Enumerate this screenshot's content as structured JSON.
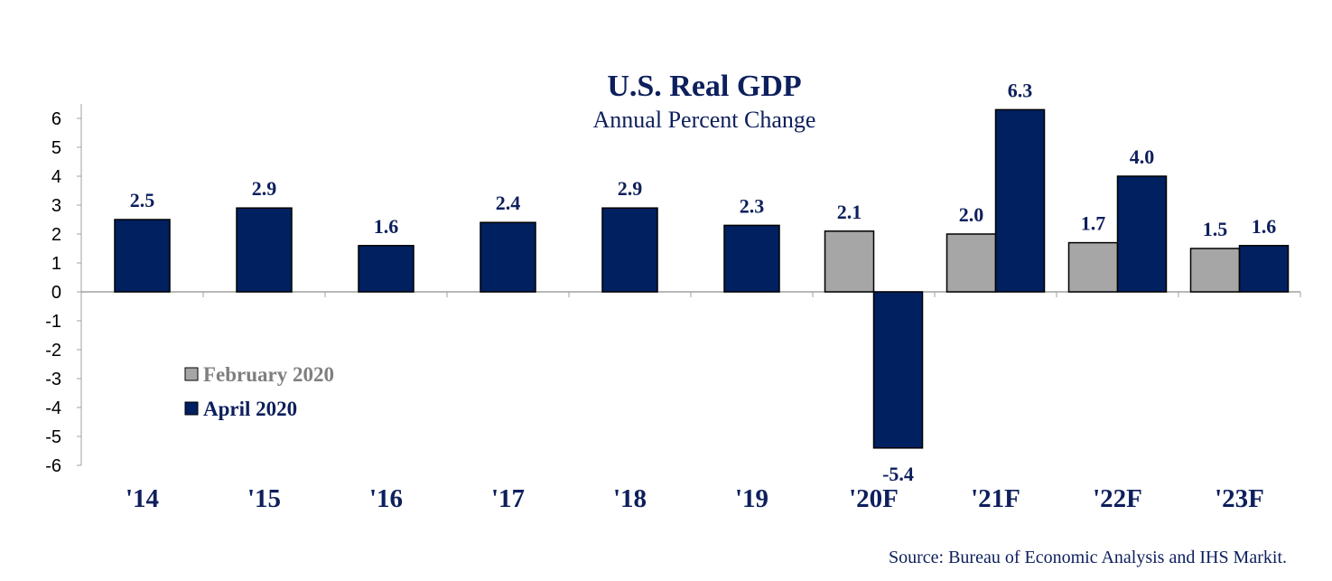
{
  "chart_data": {
    "type": "bar",
    "title": "U.S. Real GDP",
    "subtitle": "Annual Percent Change",
    "categories": [
      "'14",
      "'15",
      "'16",
      "'17",
      "'18",
      "'19",
      "'20F",
      "'21F",
      "'22F",
      "'23F"
    ],
    "series": [
      {
        "name": "February 2020",
        "color": "#a6a6a6",
        "values": [
          null,
          null,
          null,
          null,
          null,
          null,
          2.1,
          2.0,
          1.7,
          1.5
        ]
      },
      {
        "name": "April 2020",
        "color": "#002060",
        "values": [
          2.5,
          2.9,
          1.6,
          2.4,
          2.9,
          2.3,
          -5.4,
          6.3,
          4.0,
          1.6
        ]
      }
    ],
    "ylim": [
      -6,
      6
    ],
    "yticks": [
      6,
      5,
      4,
      3,
      2,
      1,
      0,
      -1,
      -2,
      -3,
      -4,
      -5,
      -6
    ],
    "xlabel": "",
    "ylabel": "",
    "grid": false,
    "legend_position": "left-middle",
    "source": "Source:  Bureau of Economic Analysis and IHS Markit."
  }
}
